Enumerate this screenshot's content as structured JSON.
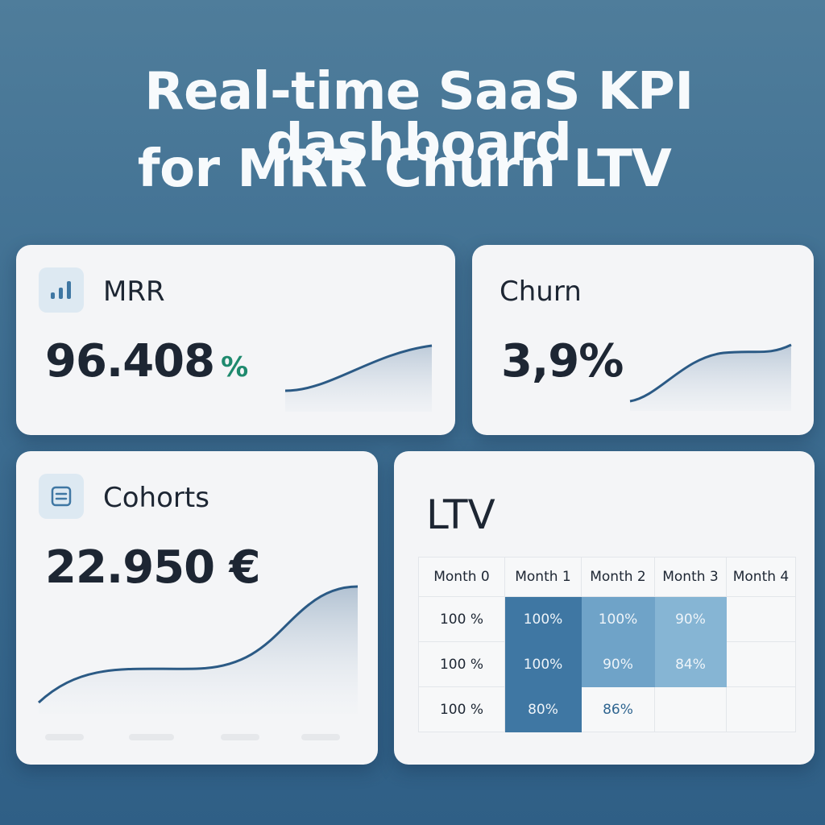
{
  "headline": {
    "line1": "Real-time SaaS KPI dashboard",
    "line2": "for MRR Churn LTV"
  },
  "mrr": {
    "title": "MRR",
    "icon": "bar-chart-icon",
    "value": "96.408",
    "unit": "%"
  },
  "churn": {
    "title": "Churn",
    "value": "3,9%"
  },
  "cohorts": {
    "title": "Cohorts",
    "icon": "document-list-icon",
    "value": "22.950 €"
  },
  "ltv": {
    "title": "LTV",
    "columns": [
      "Month 0",
      "Month 1",
      "Month 2",
      "Month 3",
      "Month 4"
    ],
    "rows": [
      [
        "100 %",
        "100%",
        "100%",
        "90%",
        ""
      ],
      [
        "100 %",
        "100%",
        "90%",
        "84%",
        ""
      ],
      [
        "100 %",
        "80%",
        "86%",
        "",
        ""
      ]
    ]
  },
  "colors": {
    "accent": "#2f5f86",
    "positive": "#1e8a6e",
    "heat_dark": "#3f77a3",
    "heat_mid": "#6fa3c8",
    "heat_light": "#86b5d4"
  }
}
